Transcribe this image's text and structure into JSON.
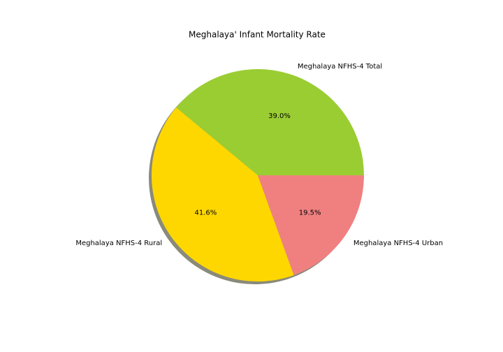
{
  "chart_data": {
    "type": "pie",
    "title": "Meghalaya' Infant Mortality Rate",
    "slices": [
      {
        "label": "Meghalaya NFHS-4 Total",
        "percent": 39.0,
        "percent_label": "39.0%",
        "color": "#9acd32"
      },
      {
        "label": "Meghalaya NFHS-4 Rural",
        "percent": 41.6,
        "percent_label": "41.6%",
        "color": "#ffd700"
      },
      {
        "label": "Meghalaya NFHS-4 Urban",
        "percent": 19.5,
        "percent_label": "19.5%",
        "color": "#f08080"
      }
    ],
    "start_angle_deg": 0,
    "direction": "counterclockwise",
    "shadow": true,
    "shadow_color": "#8a8a7a"
  }
}
